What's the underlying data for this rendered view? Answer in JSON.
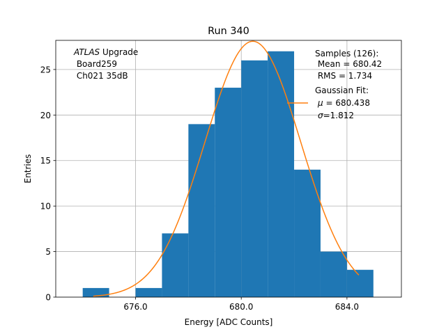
{
  "chart_data": {
    "type": "bar",
    "title": "Run 340",
    "xlabel": "Energy [ADC Counts]",
    "ylabel": "Entries",
    "xlim": [
      672.98,
      686.06
    ],
    "ylim": [
      0,
      28.2
    ],
    "grid": true,
    "x_ticks": [
      676,
      680,
      684
    ],
    "x_tick_labels": [
      "676.0",
      "680.0",
      "684.0"
    ],
    "y_ticks": [
      0,
      5,
      10,
      15,
      20,
      25
    ],
    "y_tick_labels": [
      "0",
      "5",
      "10",
      "15",
      "20",
      "25"
    ],
    "bins": [
      {
        "x0": 674.0,
        "x1": 675.0,
        "count": 1
      },
      {
        "x0": 676.0,
        "x1": 677.0,
        "count": 1
      },
      {
        "x0": 677.0,
        "x1": 678.0,
        "count": 7
      },
      {
        "x0": 678.0,
        "x1": 679.0,
        "count": 19
      },
      {
        "x0": 679.0,
        "x1": 680.0,
        "count": 23
      },
      {
        "x0": 680.0,
        "x1": 681.0,
        "count": 26
      },
      {
        "x0": 681.0,
        "x1": 682.0,
        "count": 27
      },
      {
        "x0": 682.0,
        "x1": 683.0,
        "count": 14
      },
      {
        "x0": 683.0,
        "x1": 684.0,
        "count": 5
      },
      {
        "x0": 684.0,
        "x1": 685.0,
        "count": 3
      }
    ],
    "fit": {
      "name": "Gaussian Fit",
      "mu": 680.438,
      "sigma": 1.812,
      "amplitude": 28.1,
      "x_range": [
        674.4,
        684.45
      ]
    },
    "bar_color": "#1f77b4",
    "fit_color": "#ff7f0e",
    "annotations": {
      "atlas_italic": "ATLAS",
      "atlas_rest": " Upgrade",
      "board": " Board259",
      "channel": " Ch021 35dB"
    },
    "legend": {
      "placement": "top-right",
      "samples_header": "Samples (126):",
      "samples_mean": " Mean = 680.42",
      "samples_rms": " RMS = 1.734",
      "fit_header": "Gaussian Fit:",
      "mu_symbol": "μ",
      "mu_value": " = 680.438",
      "sigma_symbol": "σ",
      "sigma_value": "=1.812"
    }
  }
}
